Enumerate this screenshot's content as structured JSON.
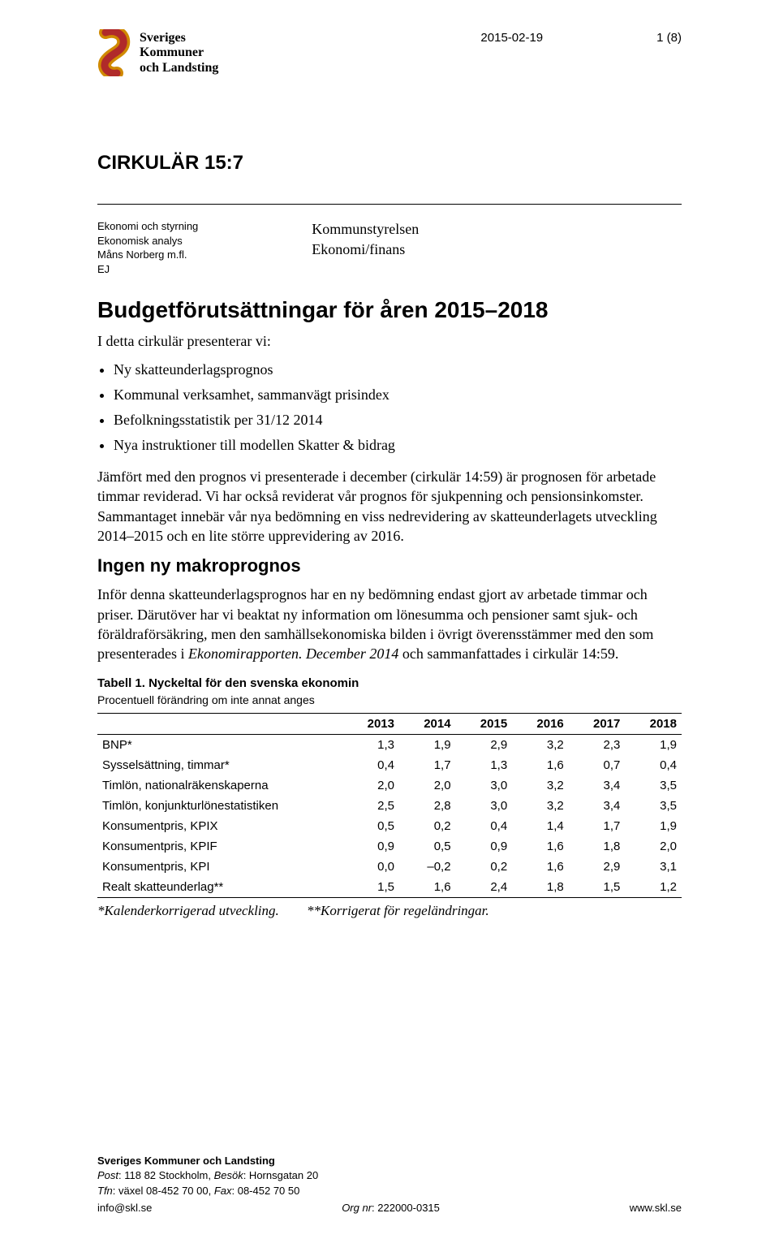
{
  "header": {
    "logo_lines": [
      "Sveriges",
      "Kommuner",
      "och Landsting"
    ],
    "date": "2015-02-19",
    "page_num": "1 (8)"
  },
  "circular": {
    "label": "CIRKULÄR 15:7"
  },
  "meta_left": {
    "line1": "Ekonomi och styrning",
    "line2": "Ekonomisk analys",
    "line3": "Måns Norberg m.fl.",
    "line4": "EJ"
  },
  "meta_right": {
    "line1": "Kommunstyrelsen",
    "line2": "Ekonomi/finans"
  },
  "title": "Budgetförutsättningar för åren 2015–2018",
  "lead": "I detta cirkulär presenterar vi:",
  "bullets": [
    "Ny skatteunderlagsprognos",
    "Kommunal verksamhet, sammanvägt prisindex",
    "Befolkningsstatistik per 31/12 2014",
    "Nya instruktioner till modellen Skatter & bidrag"
  ],
  "para1": "Jämfört med den prognos vi presenterade i december (cirkulär 14:59) är prognosen för arbetade timmar reviderad. Vi har också reviderat vår prognos för sjukpenning och pensionsinkomster. Sammantaget innebär vår nya bedömning en viss nedrevidering av skatteunderlagets utveckling 2014–2015 och en lite större upprevidering av 2016.",
  "subhead": "Ingen ny makroprognos",
  "para2_a": "Inför denna skatteunderlagsprognos har en ny bedömning endast gjort av arbetade timmar och priser. Därutöver har vi beaktat ny information om lönesumma och pensioner samt sjuk- och föräldraförsäkring, men den samhällsekonomiska bilden i övrigt överensstämmer med den som presenterades i ",
  "para2_em": "Ekonomirapporten. December 2014",
  "para2_b": " och sammanfattades i cirkulär 14:59.",
  "table": {
    "caption": "Tabell 1. Nyckeltal för den svenska ekonomin",
    "subcaption": "Procentuell förändring om inte annat anges",
    "columns": [
      "",
      "2013",
      "2014",
      "2015",
      "2016",
      "2017",
      "2018"
    ],
    "rows": [
      [
        "BNP*",
        "1,3",
        "1,9",
        "2,9",
        "3,2",
        "2,3",
        "1,9"
      ],
      [
        "Sysselsättning, timmar*",
        "0,4",
        "1,7",
        "1,3",
        "1,6",
        "0,7",
        "0,4"
      ],
      [
        "Timlön, nationalräkenskaperna",
        "2,0",
        "2,0",
        "3,0",
        "3,2",
        "3,4",
        "3,5"
      ],
      [
        "Timlön, konjunkturlönestatistiken",
        "2,5",
        "2,8",
        "3,0",
        "3,2",
        "3,4",
        "3,5"
      ],
      [
        "Konsumentpris, KPIX",
        "0,5",
        "0,2",
        "0,4",
        "1,4",
        "1,7",
        "1,9"
      ],
      [
        "Konsumentpris, KPIF",
        "0,9",
        "0,5",
        "0,9",
        "1,6",
        "1,8",
        "2,0"
      ],
      [
        "Konsumentpris, KPI",
        "0,0",
        "–0,2",
        "0,2",
        "1,6",
        "2,9",
        "3,1"
      ],
      [
        "Realt skatteunderlag**",
        "1,5",
        "1,6",
        "2,4",
        "1,8",
        "1,5",
        "1,2"
      ]
    ],
    "footnote1": "*Kalenderkorrigerad utveckling.",
    "footnote2": "**Korrigerat för regeländringar."
  },
  "footer": {
    "org": "Sveriges Kommuner och Landsting",
    "post_label": "Post",
    "post_value": ": 118 82 Stockholm, ",
    "besok_label": "Besök",
    "besok_value": ": Hornsgatan 20",
    "tfn_label": "Tfn",
    "tfn_value": ": växel 08-452 70 00, ",
    "fax_label": "Fax",
    "fax_value": ": 08-452 70 50",
    "email": "info@skl.se",
    "orgnr_label": "Org nr",
    "orgnr_value": ": 222000-0315",
    "web": "www.skl.se"
  }
}
